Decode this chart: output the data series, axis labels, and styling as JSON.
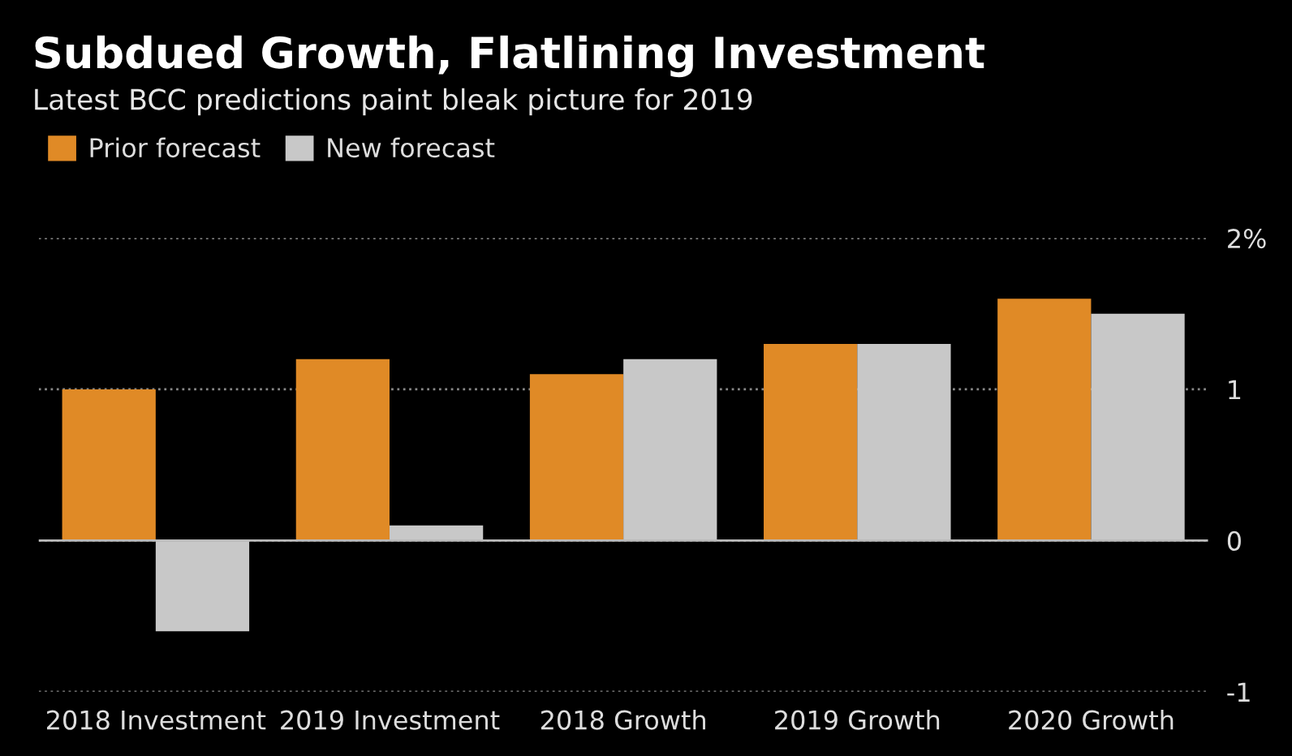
{
  "chart_data": {
    "type": "bar",
    "title": "Subdued Growth, Flatlining Investment",
    "subtitle": "Latest BCC predictions paint bleak picture for 2019",
    "categories": [
      "2018 Investment",
      "2019 Investment",
      "2018 Growth",
      "2019 Growth",
      "2020 Growth"
    ],
    "series": [
      {
        "name": "Prior forecast",
        "color": "#e08a26",
        "values": [
          1.0,
          1.2,
          1.1,
          1.3,
          1.6
        ]
      },
      {
        "name": "New forecast",
        "color": "#c8c8c8",
        "values": [
          -0.6,
          0.1,
          1.2,
          1.3,
          1.5
        ]
      }
    ],
    "ylim": [
      -1,
      2
    ],
    "yticks": [
      {
        "value": -1,
        "label": "-1"
      },
      0,
      1,
      {
        "value": 2,
        "label": "2%"
      }
    ],
    "ref_lines": [
      {
        "axis": "y",
        "value": 0,
        "label": null,
        "color": "#bbbbbb",
        "line_style": "solid"
      }
    ],
    "grid": "y",
    "legend": "top left"
  }
}
